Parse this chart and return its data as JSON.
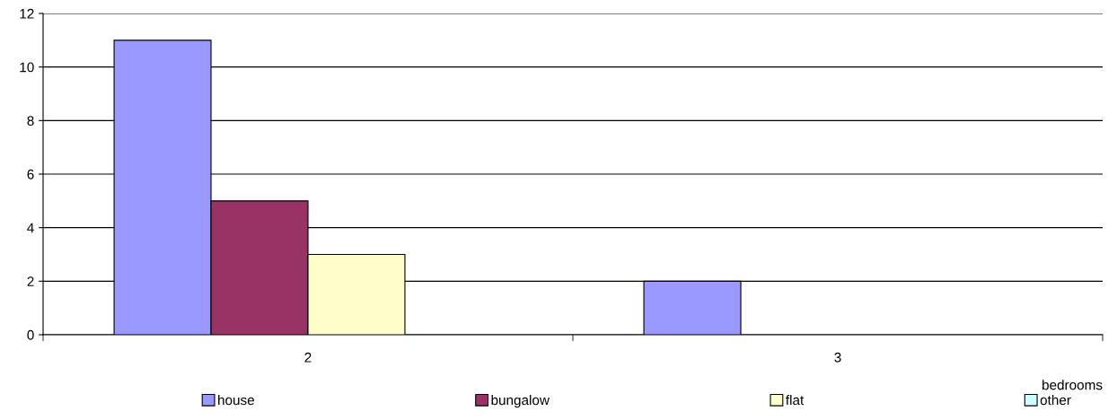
{
  "chart_data": {
    "type": "bar",
    "xlabel": "bedrooms",
    "categories": [
      "2",
      "3"
    ],
    "series": [
      {
        "name": "house",
        "color": "#9999ff",
        "values": [
          11,
          2
        ]
      },
      {
        "name": "bungalow",
        "color": "#993366",
        "values": [
          5,
          null
        ]
      },
      {
        "name": "flat",
        "color": "#ffffcc",
        "values": [
          3,
          null
        ]
      },
      {
        "name": "other",
        "color": "#ccffff",
        "values": [
          null,
          null
        ]
      }
    ],
    "ylim": [
      0,
      12
    ],
    "yticks": [
      0,
      2,
      4,
      6,
      8,
      10,
      12
    ],
    "grid": "y",
    "legend": "bottom"
  }
}
